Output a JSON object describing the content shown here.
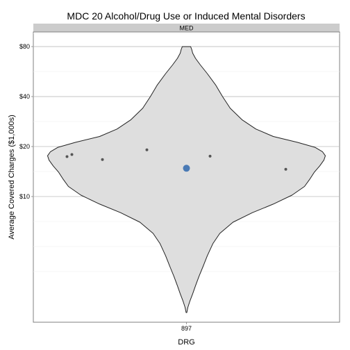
{
  "chart_data": {
    "type": "violin",
    "title": "MDC 20 Alcohol/Drug Use or Induced Mental Disorders",
    "facet_label": "MED",
    "xlabel": "DRG",
    "ylabel": "Average Covered Charges ($1,000s)",
    "y_scale": "log",
    "y_ticks": [
      10,
      20,
      40,
      80
    ],
    "y_tick_labels": [
      "$10",
      "$20",
      "$40",
      "$80"
    ],
    "y_range": [
      1.75,
      98
    ],
    "grid": true,
    "categories": [
      "897"
    ],
    "violin": {
      "category": "897",
      "min": 2.0,
      "max": 80.0
    },
    "points": [
      {
        "category": "897",
        "value": 17.4
      },
      {
        "category": "897",
        "value": 17.9
      },
      {
        "category": "897",
        "value": 16.7
      },
      {
        "category": "897",
        "value": 19.1
      },
      {
        "category": "897",
        "value": 17.5
      },
      {
        "category": "897",
        "value": 14.6
      }
    ],
    "highlight": {
      "category": "897",
      "value": 14.8
    },
    "colors": {
      "violin_fill": "#dedede",
      "violin_stroke": "#222222",
      "point": "#555555",
      "highlight": "#4a7ab5",
      "strip": "#cccccc"
    }
  }
}
